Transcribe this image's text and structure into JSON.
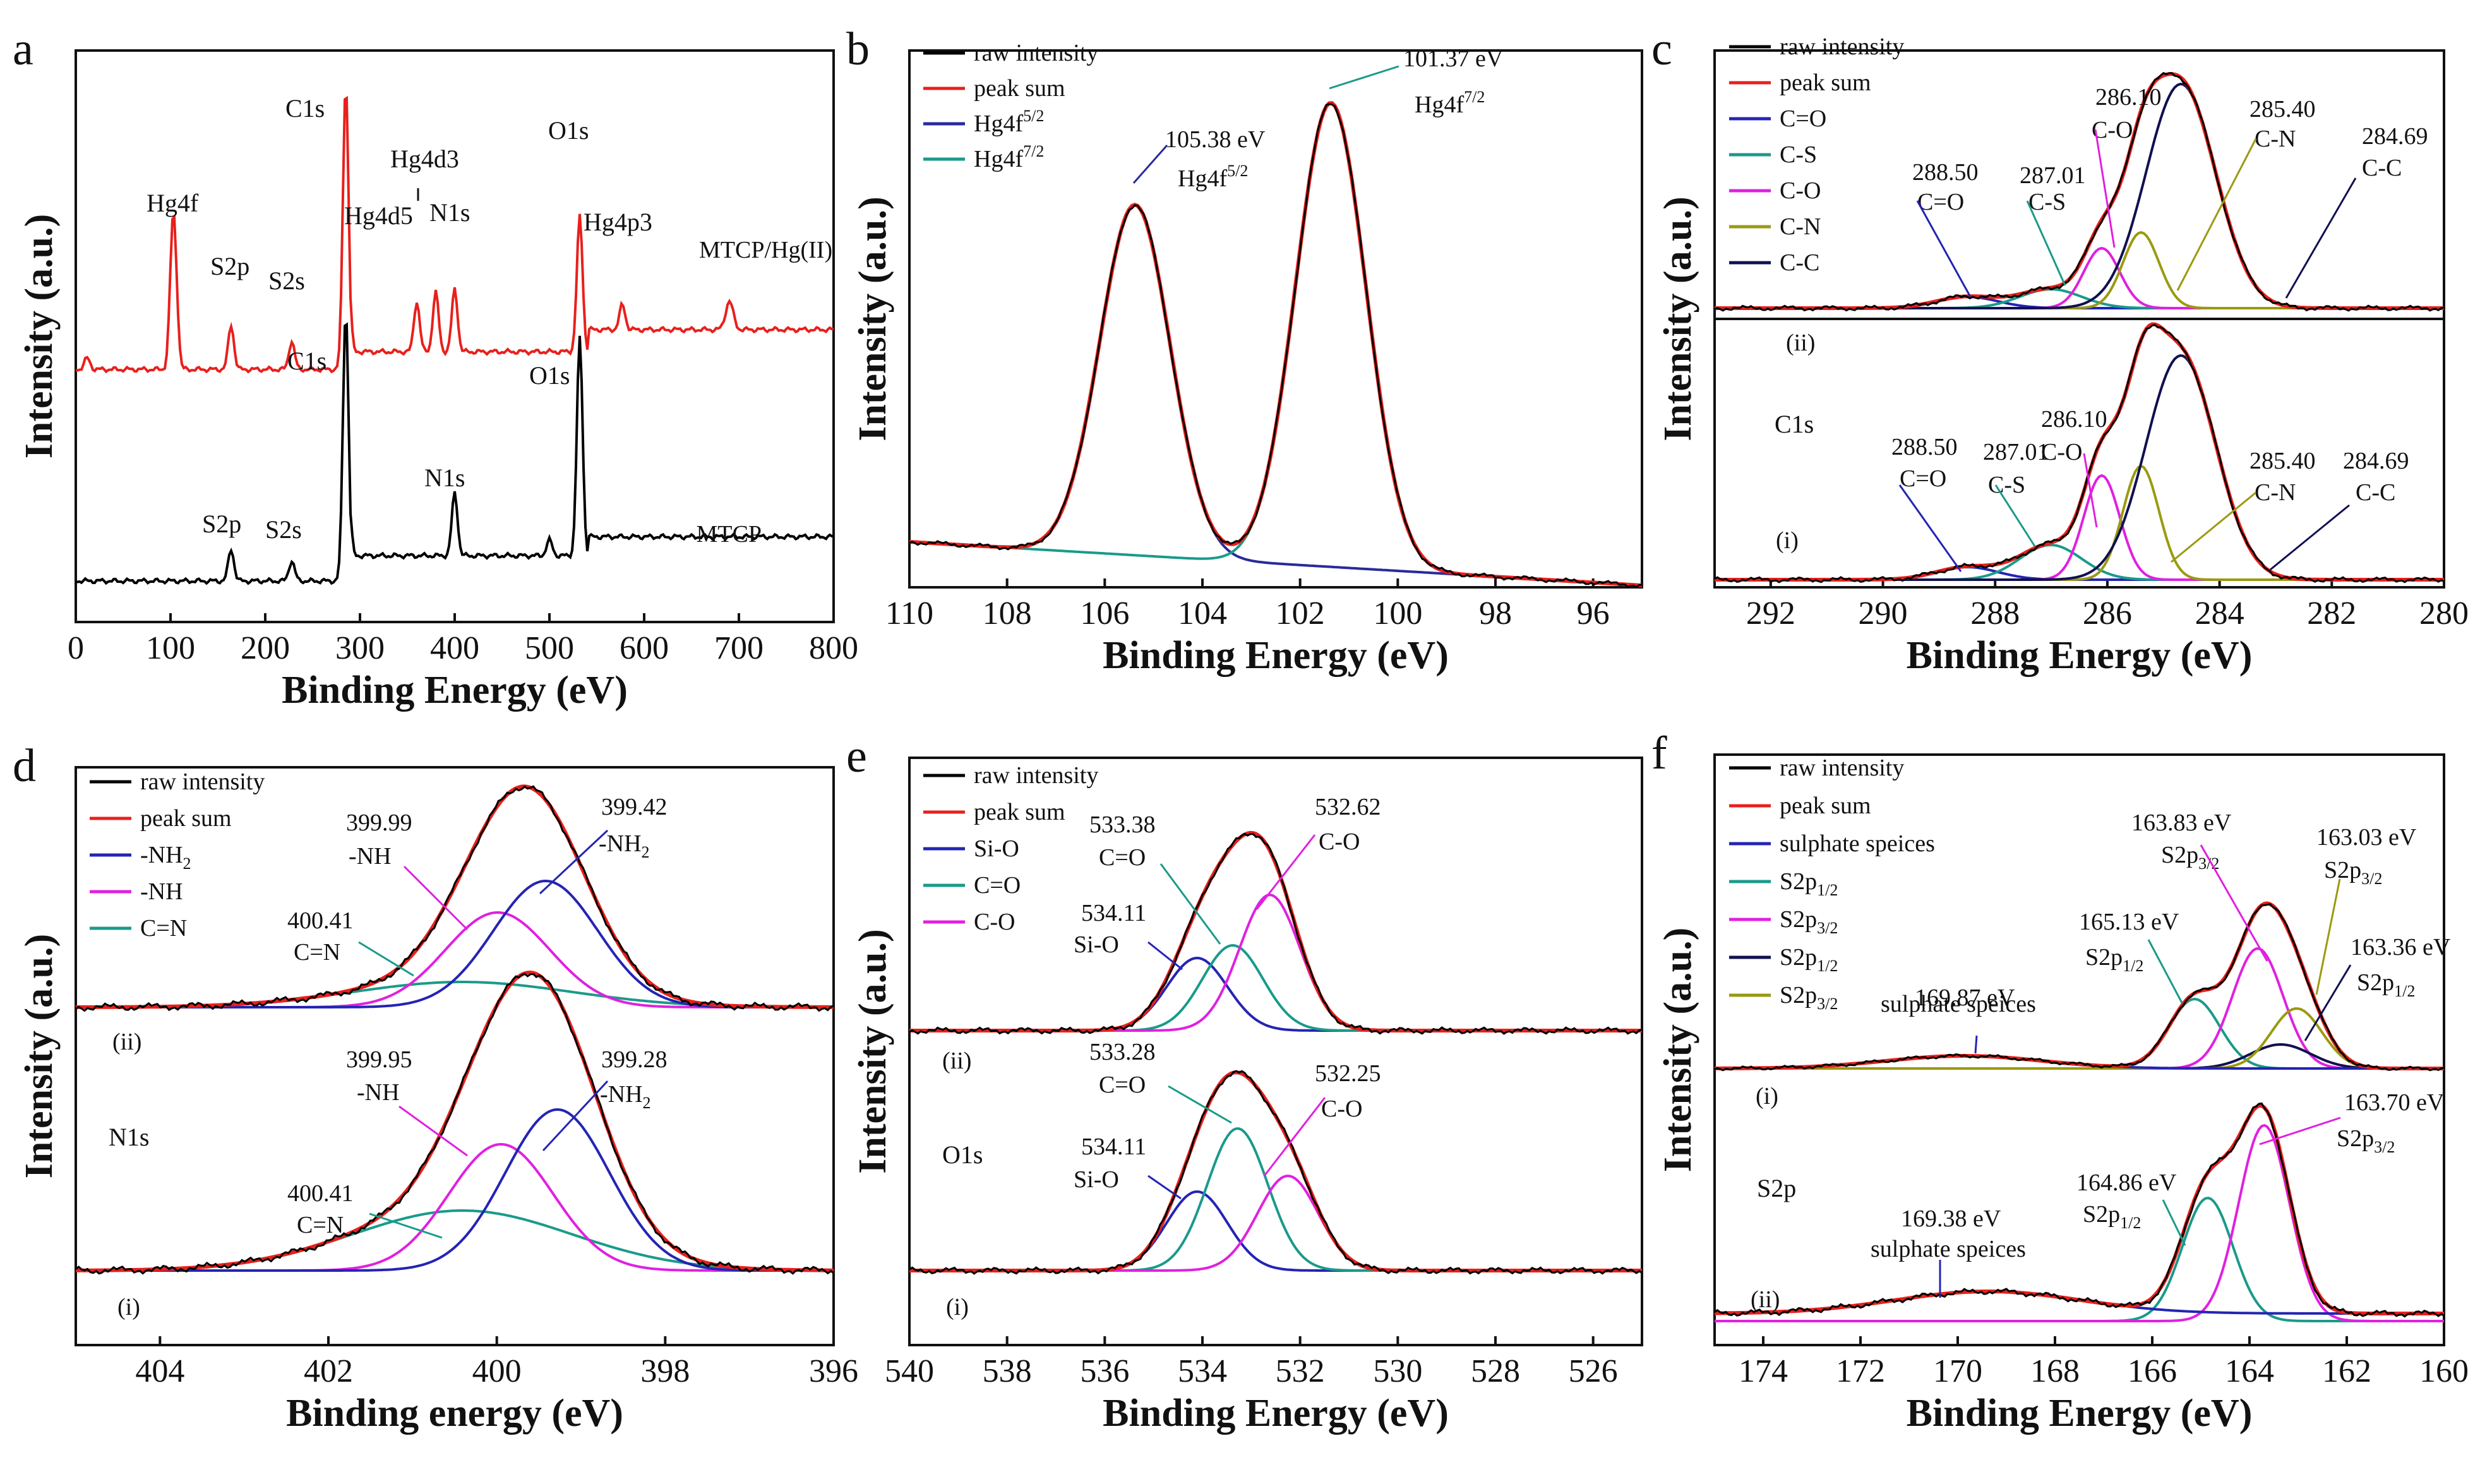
{
  "figure": {
    "colors": {
      "raw": "#000000",
      "sum": "#e8201c",
      "blue": "#2424b4",
      "teal": "#1a9a8a",
      "magenta": "#e020e0",
      "olive": "#9a9a10",
      "navy": "#101050",
      "hgfit": "#2a2a9a"
    },
    "y_label": "Intensity (a.u.)"
  },
  "chart_data": [
    {
      "id": "a",
      "type": "line",
      "letter": "a",
      "xlabel": "Binding Energy (eV)",
      "ylabel": "Intensity (a.u.)",
      "xlim": [
        0,
        800
      ],
      "xticks": [
        0,
        100,
        200,
        300,
        400,
        500,
        600,
        700,
        800
      ],
      "series": [
        {
          "name": "MTCP/Hg(II)",
          "color": "#e8201c",
          "label_text": "MTCP/Hg(II)",
          "peaks_labels": [
            "Hg4f",
            "S2p",
            "S2s",
            "C1s",
            "Hg4d5",
            "Hg4d3",
            "N1s",
            "O1s",
            "Hg4p3"
          ]
        },
        {
          "name": "MTCP",
          "color": "#000000",
          "label_text": "MTCP",
          "peaks_labels": [
            "S2p",
            "S2s",
            "C1s",
            "N1s",
            "O1s"
          ]
        }
      ],
      "peaks": [
        {
          "series": "MTCP/Hg(II)",
          "label": "Hg4f",
          "x": 102
        },
        {
          "series": "MTCP/Hg(II)",
          "label": "S2p",
          "x": 164
        },
        {
          "series": "MTCP/Hg(II)",
          "label": "S2s",
          "x": 228
        },
        {
          "series": "MTCP/Hg(II)",
          "label": "C1s",
          "x": 285
        },
        {
          "series": "MTCP/Hg(II)",
          "label": "Hg4d5",
          "x": 360
        },
        {
          "series": "MTCP/Hg(II)",
          "label": "Hg4d3",
          "x": 380
        },
        {
          "series": "MTCP/Hg(II)",
          "label": "N1s",
          "x": 400
        },
        {
          "series": "MTCP/Hg(II)",
          "label": "O1s",
          "x": 532
        },
        {
          "series": "MTCP/Hg(II)",
          "label": "Hg4p3",
          "x": 577
        },
        {
          "series": "MTCP",
          "label": "S2p",
          "x": 164
        },
        {
          "series": "MTCP",
          "label": "S2s",
          "x": 228
        },
        {
          "series": "MTCP",
          "label": "C1s",
          "x": 285
        },
        {
          "series": "MTCP",
          "label": "N1s",
          "x": 400
        },
        {
          "series": "MTCP",
          "label": "O1s",
          "x": 532
        }
      ]
    },
    {
      "id": "b",
      "type": "line",
      "letter": "b",
      "xlabel": "Binding Energy (eV)",
      "ylabel": "Intensity (a.u.)",
      "xlim": [
        110,
        95
      ],
      "xticks": [
        110,
        108,
        106,
        104,
        102,
        100,
        98,
        96
      ],
      "legend": [
        "raw intensity",
        "peak sum",
        "Hg4f5/2",
        "Hg4f7/2"
      ],
      "series": [
        {
          "name": "raw intensity",
          "color": "#000000"
        },
        {
          "name": "peak sum",
          "color": "#e8201c"
        },
        {
          "name": "Hg4f5/2",
          "color": "#2a2a9a",
          "center": 105.38
        },
        {
          "name": "Hg4f7/2",
          "color": "#1a9a8a",
          "center": 101.37
        }
      ],
      "annotations": [
        {
          "value": "105.38 eV",
          "label": "Hg4f5/2",
          "x": 105.38
        },
        {
          "value": "101.37 eV",
          "label": "Hg4f7/2",
          "x": 101.37
        }
      ]
    },
    {
      "id": "c",
      "type": "line",
      "letter": "c",
      "xlabel": "Binding Energy (eV)",
      "ylabel": "Intensity (a.u.)",
      "xlim": [
        293,
        280
      ],
      "xticks": [
        292,
        290,
        288,
        286,
        284,
        282,
        280
      ],
      "legend": [
        "raw intensity",
        "peak sum",
        "C=O",
        "C-S",
        "C-O",
        "C-N",
        "C-C"
      ],
      "core": "C1s",
      "spectra": [
        {
          "state": "(ii)",
          "components": [
            {
              "name": "C=O",
              "center": 288.5
            },
            {
              "name": "C-S",
              "center": 287.01
            },
            {
              "name": "C-O",
              "center": 286.1
            },
            {
              "name": "C-N",
              "center": 285.4
            },
            {
              "name": "C-C",
              "center": 284.69
            }
          ]
        },
        {
          "state": "(i)",
          "components": [
            {
              "name": "C=O",
              "center": 288.5
            },
            {
              "name": "C-S",
              "center": 287.01
            },
            {
              "name": "C-O",
              "center": 286.1
            },
            {
              "name": "C-N",
              "center": 285.4
            },
            {
              "name": "C-C",
              "center": 284.69
            }
          ]
        }
      ],
      "annotations": [
        {
          "state": "(ii)",
          "value": "288.50",
          "label": "C=O"
        },
        {
          "state": "(ii)",
          "value": "287.01",
          "label": "C-S"
        },
        {
          "state": "(ii)",
          "value": "286.10",
          "label": "C-O"
        },
        {
          "state": "(ii)",
          "value": "285.40",
          "label": "C-N"
        },
        {
          "state": "(ii)",
          "value": "284.69",
          "label": "C-C"
        },
        {
          "state": "(i)",
          "value": "288.50",
          "label": "C=O"
        },
        {
          "state": "(i)",
          "value": "287.01",
          "label": "C-S"
        },
        {
          "state": "(i)",
          "value": "286.10",
          "label": "C-O"
        },
        {
          "state": "(i)",
          "value": "285.40",
          "label": "C-N"
        },
        {
          "state": "(i)",
          "value": "284.69",
          "label": "C-C"
        }
      ]
    },
    {
      "id": "d",
      "type": "line",
      "letter": "d",
      "xlabel": "Binding energy (eV)",
      "ylabel": "Intensity (a.u.)",
      "xlim": [
        405,
        396
      ],
      "xticks": [
        404,
        402,
        400,
        398,
        396
      ],
      "legend": [
        "raw intensity",
        "peak sum",
        "-NH2",
        "-NH",
        "C=N"
      ],
      "core": "N1s",
      "annotations": [
        {
          "state": "(ii)",
          "value": "399.99",
          "label": "-NH"
        },
        {
          "state": "(ii)",
          "value": "399.42",
          "label": "-NH2"
        },
        {
          "state": "(ii)",
          "value": "400.41",
          "label": "C=N"
        },
        {
          "state": "(i)",
          "value": "399.95",
          "label": "-NH"
        },
        {
          "state": "(i)",
          "value": "399.28",
          "label": "-NH2"
        },
        {
          "state": "(i)",
          "value": "400.41",
          "label": "C=N"
        }
      ]
    },
    {
      "id": "e",
      "type": "line",
      "letter": "e",
      "xlabel": "Binding Energy (eV)",
      "ylabel": "Intensity (a.u.)",
      "xlim": [
        540,
        525
      ],
      "xticks": [
        540,
        538,
        536,
        534,
        532,
        530,
        528,
        526
      ],
      "legend": [
        "raw intensity",
        "peak sum",
        "Si-O",
        "C=O",
        "C-O"
      ],
      "core": "O1s",
      "annotations": [
        {
          "state": "(ii)",
          "value": "533.38",
          "label": "C=O"
        },
        {
          "state": "(ii)",
          "value": "532.62",
          "label": "C-O"
        },
        {
          "state": "(ii)",
          "value": "534.11",
          "label": "Si-O"
        },
        {
          "state": "(i)",
          "value": "533.28",
          "label": "C=O"
        },
        {
          "state": "(i)",
          "value": "532.25",
          "label": "C-O"
        },
        {
          "state": "(i)",
          "value": "534.11",
          "label": "Si-O"
        }
      ]
    },
    {
      "id": "f",
      "type": "line",
      "letter": "f",
      "xlabel": "Binding Energy (eV)",
      "ylabel": "Intensity (a.u.)",
      "xlim": [
        175,
        160
      ],
      "xticks": [
        174,
        172,
        170,
        168,
        166,
        164,
        162,
        160
      ],
      "legend": [
        "raw intensity",
        "peak sum",
        "sulphate speices",
        "S2p1/2",
        "S2p3/2",
        "S2p1/2",
        "S2p3/2"
      ],
      "core": "S2p",
      "annotations": [
        {
          "state": "(i)",
          "value": "163.83 eV",
          "label": "S2p3/2"
        },
        {
          "state": "(i)",
          "value": "163.03 eV",
          "label": "S2p3/2"
        },
        {
          "state": "(i)",
          "value": "165.13 eV",
          "label": "S2p1/2"
        },
        {
          "state": "(i)",
          "value": "163.36 eV",
          "label": "S2p1/2"
        },
        {
          "state": "(i)",
          "value": "169.87 eV",
          "label": "sulphate speices"
        },
        {
          "state": "(ii)",
          "value": "164.86 eV",
          "label": "S2p1/2"
        },
        {
          "state": "(ii)",
          "value": "163.70 eV",
          "label": "S2p3/2"
        },
        {
          "state": "(ii)",
          "value": "169.38 eV",
          "label": "sulphate speices"
        }
      ]
    }
  ]
}
